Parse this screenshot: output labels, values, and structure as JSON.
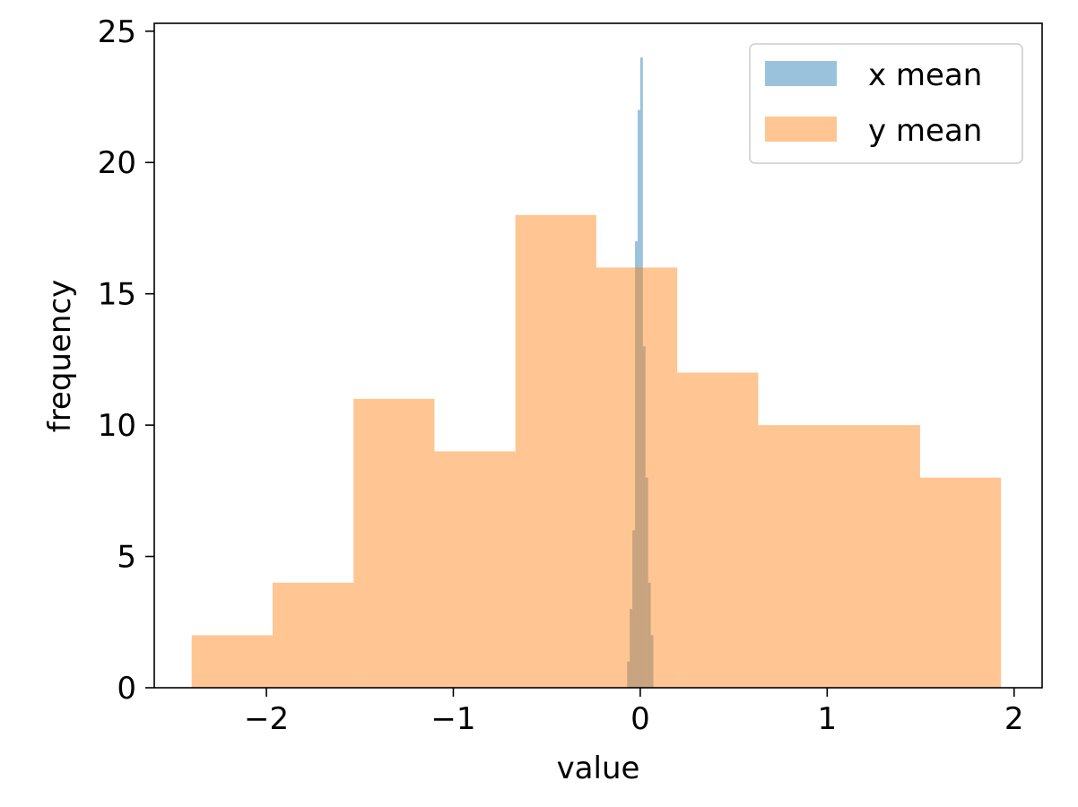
{
  "chart_data": {
    "type": "histogram",
    "title": "",
    "xlabel": "value",
    "ylabel": "frequency",
    "xlim": [
      -2.6,
      2.15
    ],
    "ylim": [
      0,
      25.3
    ],
    "xticks": [
      -2,
      -1,
      0,
      1,
      2
    ],
    "xtick_labels": [
      "−2",
      "−1",
      "0",
      "1",
      "2"
    ],
    "yticks": [
      0,
      5,
      10,
      15,
      20,
      25
    ],
    "ytick_labels": [
      "0",
      "5",
      "10",
      "15",
      "20",
      "25"
    ],
    "grid": false,
    "legend": {
      "placement": "top-right"
    },
    "series": [
      {
        "name": "x mean",
        "color": "#1f77b4",
        "alpha": 0.45,
        "edges": [
          -0.07,
          -0.056,
          -0.042,
          -0.028,
          -0.014,
          0.0,
          0.014,
          0.028,
          0.042,
          0.056,
          0.07
        ],
        "counts": [
          1,
          3,
          6,
          17,
          22,
          24,
          13,
          8,
          4,
          2
        ]
      },
      {
        "name": "y mean",
        "color": "#ff7f0e",
        "alpha": 0.45,
        "edges": [
          -2.4,
          -1.967,
          -1.534,
          -1.101,
          -0.668,
          -0.235,
          0.198,
          0.631,
          1.064,
          1.497,
          1.93
        ],
        "counts": [
          2,
          4,
          11,
          9,
          18,
          16,
          12,
          10,
          10,
          8
        ]
      }
    ]
  }
}
